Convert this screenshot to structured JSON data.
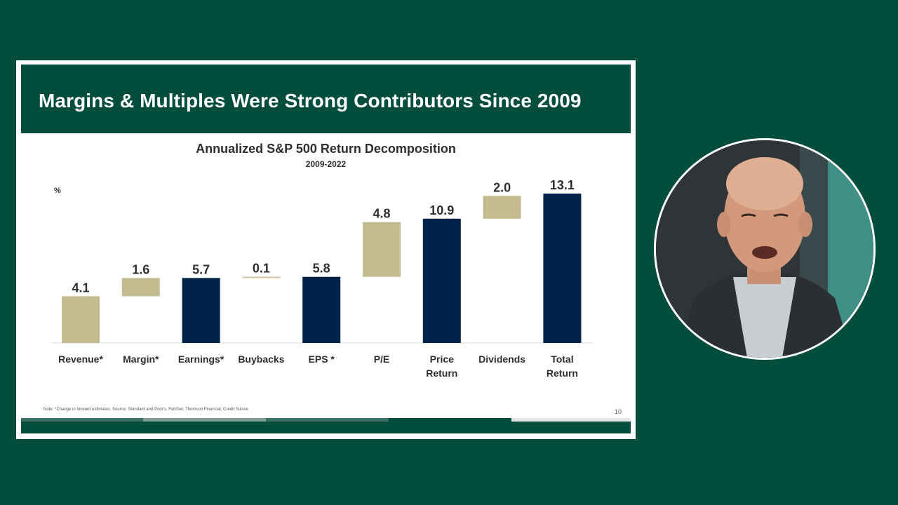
{
  "slide": {
    "title": "Margins & Multiples Were Strong Contributors Since 2009",
    "footnote": "Note: *Change in forward estimates. Source: Standard and Poor's, FactSet, Thomson Financial, Credit Suisse",
    "page_number": "10"
  },
  "colors": {
    "background": "#034d3d",
    "header": "#034d3d",
    "navy_bar": "#002349",
    "tan_bar": "#c5bb90",
    "text": "#2e2e2e"
  },
  "chart_data": {
    "type": "bar",
    "subtype": "waterfall",
    "title": "Annualized S&P 500 Return Decomposition",
    "subtitle": "2009-2022",
    "ylabel": "%",
    "ylim": [
      0,
      13.6
    ],
    "grid": false,
    "legend": "none",
    "categories": [
      {
        "line1": "Revenue*",
        "line2": ""
      },
      {
        "line1": "Margin*",
        "line2": ""
      },
      {
        "line1": "Earnings*",
        "line2": ""
      },
      {
        "line1": "Buybacks",
        "line2": ""
      },
      {
        "line1": "EPS *",
        "line2": ""
      },
      {
        "line1": "P/E",
        "line2": ""
      },
      {
        "line1": "Price",
        "line2": "Return"
      },
      {
        "line1": "Dividends",
        "line2": ""
      },
      {
        "line1": "Total",
        "line2": "Return"
      }
    ],
    "bars": [
      {
        "label": "4.1",
        "value": 4.1,
        "base": 0,
        "kind": "increment"
      },
      {
        "label": "1.6",
        "value": 1.6,
        "base": 4.1,
        "kind": "increment"
      },
      {
        "label": "5.7",
        "value": 5.7,
        "base": 0,
        "kind": "total"
      },
      {
        "label": "0.1",
        "value": 0.1,
        "base": 5.7,
        "kind": "increment"
      },
      {
        "label": "5.8",
        "value": 5.8,
        "base": 0,
        "kind": "total"
      },
      {
        "label": "4.8",
        "value": 4.8,
        "base": 5.8,
        "kind": "increment"
      },
      {
        "label": "10.9",
        "value": 10.9,
        "base": 0,
        "kind": "total"
      },
      {
        "label": "2.0",
        "value": 2.0,
        "base": 10.9,
        "kind": "increment"
      },
      {
        "label": "13.1",
        "value": 13.1,
        "base": 0,
        "kind": "total"
      }
    ]
  },
  "video": {
    "subject": "presenter-video"
  }
}
